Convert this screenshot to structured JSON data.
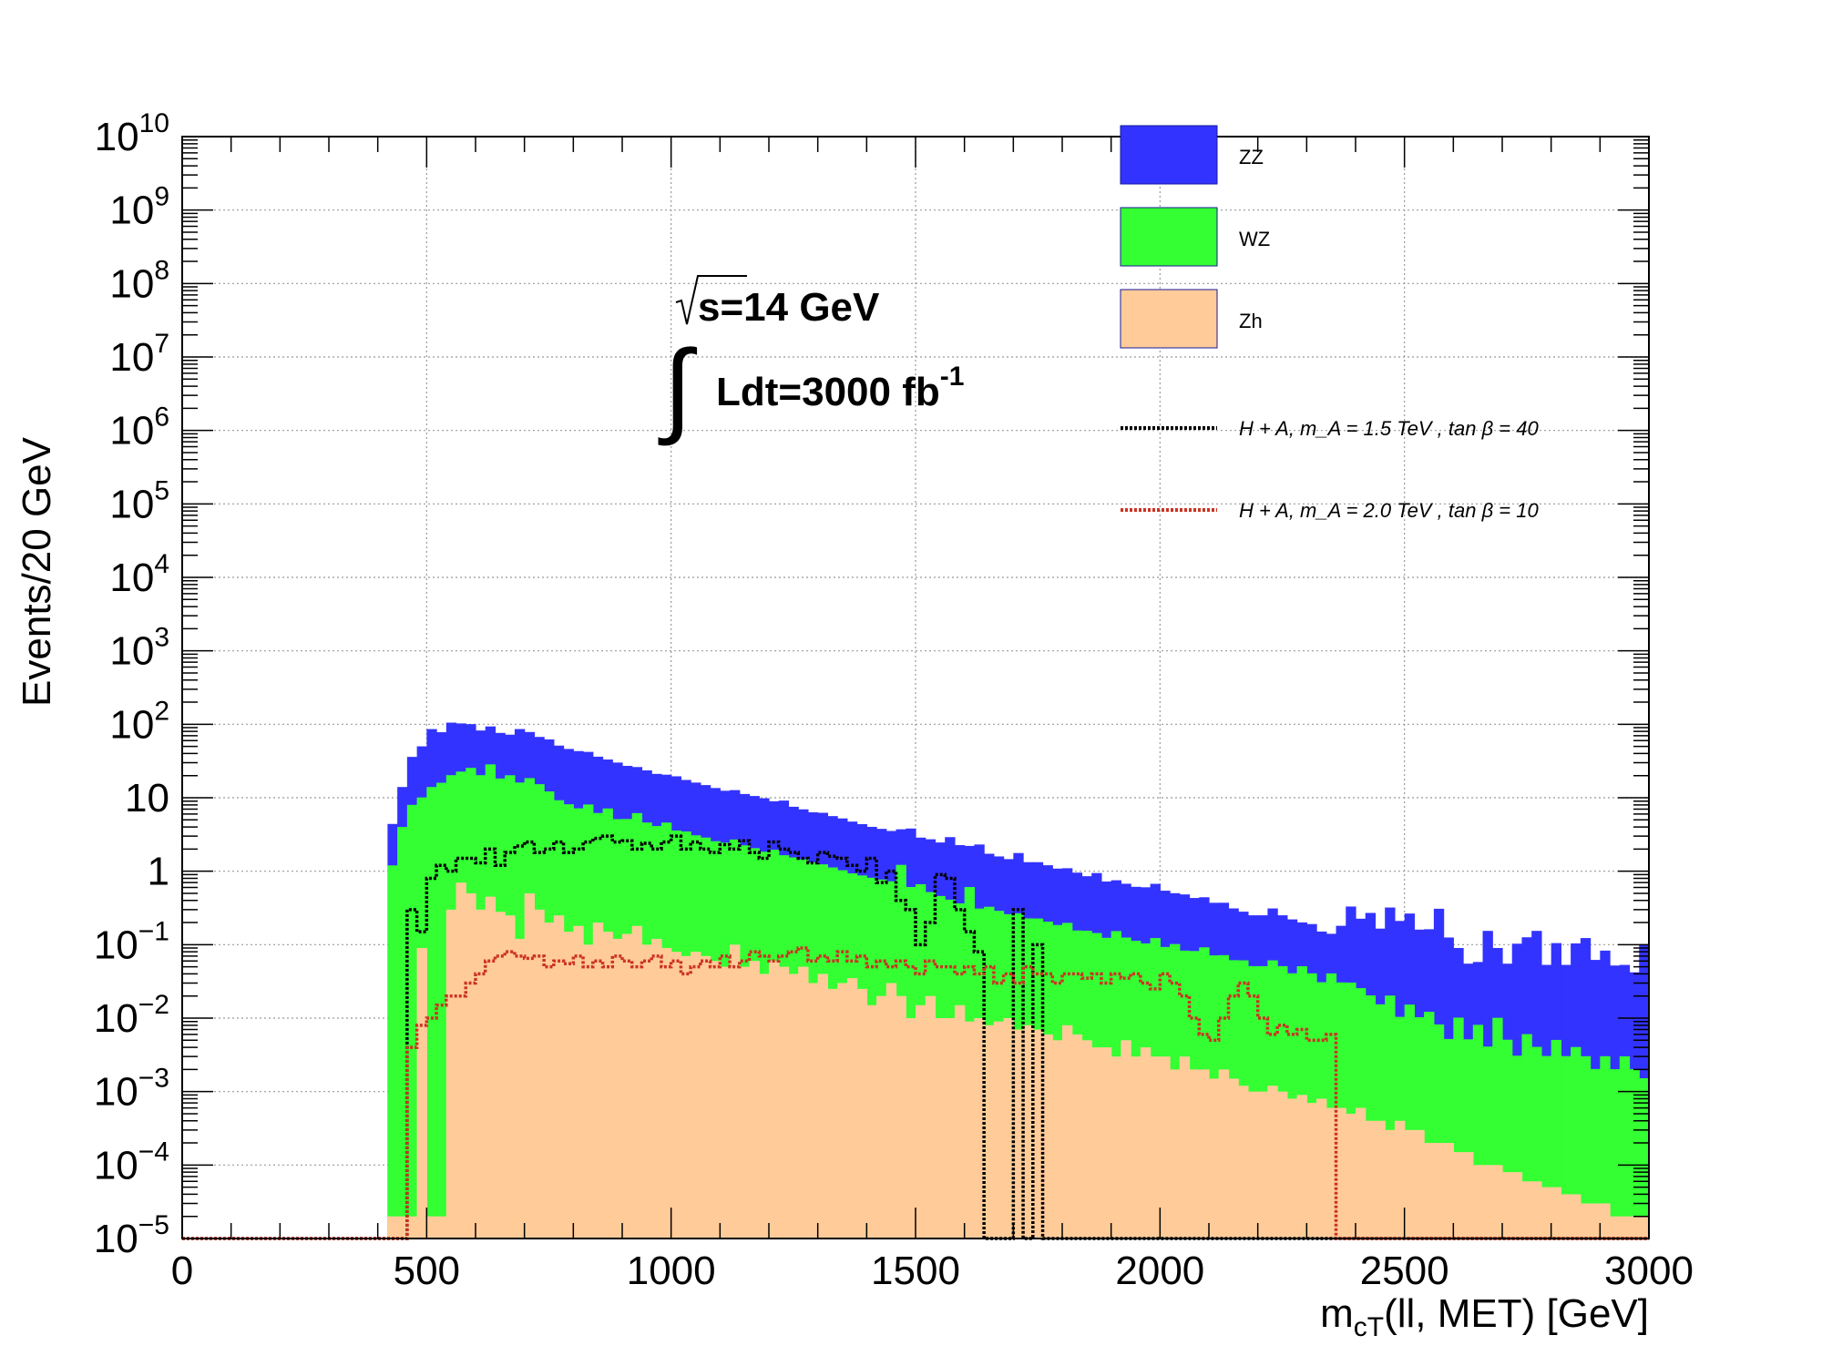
{
  "chart_data": {
    "type": "bar",
    "stacked": true,
    "xlabel": "m",
    "xlabel_sub": "cT",
    "xlabel_rest": "(ll, MET) [GeV]",
    "ylabel": "Events/20 GeV",
    "xlim": [
      0,
      3000
    ],
    "ylim": [
      1e-05,
      10000000000.0
    ],
    "yscale": "log",
    "grid": true,
    "bin_width": 20,
    "x_ticks": [
      "0",
      "500",
      "1000",
      "1500",
      "2000",
      "2500",
      "3000"
    ],
    "y_ticks": [
      {
        "base": "10",
        "exp": "10"
      },
      {
        "base": "10",
        "exp": "9"
      },
      {
        "base": "10",
        "exp": "8"
      },
      {
        "base": "10",
        "exp": "7"
      },
      {
        "base": "10",
        "exp": "6"
      },
      {
        "base": "10",
        "exp": "5"
      },
      {
        "base": "10",
        "exp": "4"
      },
      {
        "base": "10",
        "exp": "3"
      },
      {
        "base": "10",
        "exp": "2"
      },
      {
        "base": "10",
        "exp": ""
      },
      {
        "base": "1",
        "exp": ""
      },
      {
        "base": "10",
        "exp": "−1"
      },
      {
        "base": "10",
        "exp": "−2"
      },
      {
        "base": "10",
        "exp": "−3"
      },
      {
        "base": "10",
        "exp": "−4"
      },
      {
        "base": "10",
        "exp": "−5"
      }
    ],
    "annotations": {
      "sqrt_s": "s=14 GeV",
      "lumi": "Ldt=3000 fb",
      "lumi_exp": "-1"
    },
    "legend_position": "top-right",
    "series": [
      {
        "name": "ZZ",
        "kind": "stack",
        "color": "#3333ff",
        "x_start": 420,
        "values": [
          3.2,
          10,
          28,
          40,
          72,
          62,
          85,
          80,
          75,
          62,
          65,
          58,
          52,
          70,
          60,
          52,
          50,
          42,
          38,
          36,
          34,
          30,
          26,
          25,
          22,
          20,
          19,
          17,
          16,
          16,
          14,
          13,
          12,
          11,
          10,
          10,
          9,
          8.5,
          8,
          7,
          7.5,
          6,
          5.5,
          5,
          5,
          4.5,
          4.2,
          3.8,
          3.5,
          3.2,
          3,
          2.8,
          2.5,
          3.2,
          2.2,
          2.2,
          2,
          2.5,
          1.9,
          1.6,
          2.0,
          1.4,
          1.3,
          1.2,
          1.5,
          1.1,
          1.1,
          1.0,
          0.9,
          0.9,
          0.8,
          0.7,
          0.8,
          0.6,
          0.6,
          0.55,
          0.5,
          0.5,
          0.55,
          0.45,
          0.4,
          0.4,
          0.35,
          0.35,
          0.3,
          0.3,
          0.25,
          0.22,
          0.2,
          0.2,
          0.25,
          0.2,
          0.18,
          0.15,
          0.15,
          0.12,
          0.1,
          0.15,
          0.3,
          0.2,
          0.25,
          0.15,
          0.3,
          0.2,
          0.25,
          0.15,
          0.15,
          0.3,
          0.12,
          0.08,
          0.05,
          0.05,
          0.15,
          0.08,
          0.05,
          0.1,
          0.12,
          0.15,
          0.05,
          0.1,
          0.05,
          0.1,
          0.12,
          0.06,
          0.08,
          0.05,
          0.05,
          0.04,
          0.1,
          0.05,
          0.04,
          0.07,
          0.05,
          0.04,
          0.06,
          0.07,
          0.05,
          0.03,
          0.03,
          0.06,
          0.04,
          0.05,
          0.05,
          0.03,
          0.06,
          0.03,
          0.05,
          0.05,
          0.06,
          0.03,
          0.05,
          0.03,
          0.06,
          0.03,
          0.08,
          0.04,
          0.05,
          0.03,
          0.03,
          0.06,
          0.04,
          0.04,
          0.06,
          0.05,
          0.04,
          0.05,
          0.03,
          0.06,
          0.05,
          0.03,
          0.06
        ]
      },
      {
        "name": "WZ",
        "kind": "stack",
        "color": "#33ff33",
        "x_start": 420,
        "values": [
          1.2,
          4,
          8,
          10,
          14,
          16,
          20,
          22,
          25,
          20,
          28,
          18,
          20,
          16,
          18,
          15,
          12,
          9,
          8,
          7,
          8,
          6,
          7,
          5,
          5,
          6,
          4.5,
          4,
          4.5,
          3.5,
          3.4,
          3,
          2.8,
          2.5,
          2.4,
          2.6,
          2.2,
          2.0,
          1.8,
          1.9,
          1.6,
          1.5,
          1.4,
          1.3,
          1.2,
          1.1,
          1.0,
          0.9,
          0.85,
          0.8,
          0.75,
          0.7,
          1.2,
          0.6,
          0.65,
          0.5,
          0.45,
          0.4,
          0.35,
          0.6,
          0.3,
          0.32,
          0.28,
          0.25,
          0.26,
          0.22,
          0.22,
          0.2,
          0.18,
          0.19,
          0.15,
          0.15,
          0.14,
          0.12,
          0.15,
          0.12,
          0.11,
          0.1,
          0.12,
          0.09,
          0.1,
          0.08,
          0.08,
          0.09,
          0.07,
          0.07,
          0.06,
          0.06,
          0.05,
          0.05,
          0.06,
          0.05,
          0.04,
          0.05,
          0.04,
          0.03,
          0.04,
          0.03,
          0.03,
          0.025,
          0.02,
          0.015,
          0.02,
          0.01,
          0.015,
          0.01,
          0.012,
          0.008,
          0.005,
          0.01,
          0.005,
          0.008,
          0.004,
          0.01,
          0.005,
          0.003,
          0.006,
          0.004,
          0.003,
          0.005,
          0.003,
          0.004,
          0.003,
          0.002,
          0.003,
          0.002,
          0.003,
          0.002,
          0.0015,
          0.002,
          0.001,
          0.0015,
          0.001,
          0.0012,
          0.0008,
          0.001,
          0.0007,
          0.0008,
          0.0006,
          0.0007,
          0.0005,
          0.0006,
          0.0004,
          0.0005,
          0.0003,
          0.0004,
          0.0003,
          0.0002,
          0.0003,
          0.0002,
          0.0002,
          0.0001,
          0.0002,
          0.0001,
          0.0001,
          8e-05,
          0.0001,
          6e-05,
          8e-05,
          5e-05,
          6e-05,
          4e-05,
          5e-05,
          3e-05,
          4e-05,
          3e-05,
          2e-05,
          3e-05
        ]
      },
      {
        "name": "Zh",
        "kind": "stack",
        "color": "#ffcc99",
        "x_start": 420,
        "values": [
          2e-05,
          2e-05,
          2e-05,
          0.09,
          2e-05,
          2e-05,
          0.3,
          0.7,
          0.5,
          0.3,
          0.45,
          0.28,
          0.25,
          0.12,
          0.5,
          0.3,
          0.2,
          0.25,
          0.15,
          0.18,
          0.1,
          0.2,
          0.15,
          0.12,
          0.14,
          0.18,
          0.1,
          0.12,
          0.09,
          0.08,
          0.07,
          0.08,
          0.07,
          0.06,
          0.05,
          0.1,
          0.05,
          0.06,
          0.04,
          0.06,
          0.05,
          0.04,
          0.05,
          0.03,
          0.04,
          0.025,
          0.03,
          0.035,
          0.025,
          0.015,
          0.02,
          0.03,
          0.02,
          0.01,
          0.015,
          0.02,
          0.01,
          0.01,
          0.015,
          0.009,
          0.01,
          0.008,
          0.009,
          0.01,
          0.007,
          0.008,
          0.007,
          0.006,
          0.005,
          0.008,
          0.006,
          0.005,
          0.004,
          0.004,
          0.003,
          0.005,
          0.003,
          0.004,
          0.003,
          0.003,
          0.002,
          0.003,
          0.002,
          0.002,
          0.0015,
          0.002,
          0.0015,
          0.0012,
          0.001,
          0.001,
          0.0012,
          0.001,
          0.0008,
          0.0009,
          0.0007,
          0.0008,
          0.0006,
          0.0006,
          0.0005,
          0.0006,
          0.0004,
          0.0004,
          0.0003,
          0.0004,
          0.0003,
          0.0003,
          0.0002,
          0.0002,
          0.0002,
          0.00015,
          0.00015,
          0.0001,
          0.0001,
          0.0001,
          8e-05,
          8e-05,
          6e-05,
          6e-05,
          5e-05,
          5e-05,
          4e-05,
          4e-05,
          3e-05,
          3e-05,
          3e-05,
          2e-05,
          2e-05,
          2e-05,
          2e-05,
          2e-05,
          2e-05,
          2e-05,
          2e-05,
          2e-05,
          2e-05,
          2e-05,
          2e-05,
          2e-05,
          2e-05,
          2e-05,
          2e-05,
          2e-05,
          2e-05,
          2e-05,
          2e-05,
          2e-05,
          2e-05,
          2e-05,
          2e-05,
          2e-05,
          2e-05,
          2e-05,
          2e-05,
          2e-05,
          2e-05,
          2e-05,
          2e-05,
          2e-05,
          2e-05,
          2e-05,
          2e-05,
          2e-05,
          2e-05,
          2e-05,
          2e-05,
          2e-05,
          2e-05,
          2e-05,
          2e-05,
          2e-05,
          2e-05,
          2e-05
        ]
      },
      {
        "name": "H + A,   m_A = 1.5   TeV   ,   tan β = 40",
        "kind": "overlay",
        "color": "#000000",
        "x_start": 420,
        "values": [
          1e-05,
          1e-05,
          0.3,
          0.15,
          0.8,
          1.2,
          1.0,
          1.5,
          1.5,
          1.3,
          2.0,
          1.2,
          1.8,
          2.2,
          2.5,
          1.8,
          2.0,
          2.5,
          1.8,
          2.0,
          2.5,
          2.8,
          3.0,
          2.5,
          2.6,
          2.0,
          2.4,
          2.0,
          2.5,
          3.0,
          2.0,
          2.5,
          2.0,
          1.8,
          2.3,
          2.0,
          2.6,
          1.8,
          1.5,
          2.5,
          2.0,
          1.8,
          1.5,
          1.3,
          1.8,
          1.6,
          1.5,
          1.2,
          1.0,
          1.5,
          0.7,
          1.0,
          0.4,
          0.3,
          0.1,
          0.2,
          0.9,
          0.8,
          0.3,
          0.15,
          0.08,
          1e-05,
          1e-05,
          1e-05,
          0.3,
          1e-05,
          0.1,
          1e-05,
          1e-05,
          1e-05,
          1e-05,
          1e-05,
          1e-05,
          1e-05,
          1e-05,
          1e-05,
          1e-05,
          1e-05,
          1e-05,
          1e-05,
          1e-05,
          1e-05,
          1e-05,
          1e-05,
          1e-05,
          1e-05,
          1e-05,
          1e-05,
          1e-05,
          1e-05,
          1e-05,
          1e-05,
          1e-05,
          1e-05,
          1e-05,
          1e-05,
          1e-05,
          1e-05,
          1e-05,
          1e-05,
          1e-05,
          1e-05,
          1e-05,
          1e-05,
          1e-05,
          1e-05,
          1e-05,
          1e-05,
          1e-05,
          1e-05,
          1e-05,
          1e-05,
          1e-05,
          1e-05,
          1e-05,
          1e-05,
          1e-05,
          1e-05,
          1e-05,
          1e-05,
          1e-05,
          1e-05,
          1e-05,
          1e-05,
          1e-05,
          1e-05,
          1e-05,
          1e-05,
          1e-05,
          1e-05,
          1e-05,
          1e-05,
          1e-05,
          1e-05,
          1e-05,
          1e-05,
          1e-05,
          1e-05,
          1e-05,
          1e-05,
          1e-05,
          1e-05,
          1e-05,
          1e-05,
          1e-05,
          1e-05,
          1e-05,
          1e-05,
          1e-05,
          1e-05,
          1e-05,
          1e-05,
          1e-05,
          1e-05,
          1e-05,
          1e-05,
          1e-05,
          1e-05,
          1e-05,
          1e-05,
          1e-05,
          1e-05,
          1e-05,
          1e-05,
          1e-05,
          1e-05,
          1e-05,
          1e-05,
          1e-05,
          1e-05,
          1e-05,
          1e-05,
          1e-05,
          1e-05
        ]
      },
      {
        "name": "H + A,   m_A = 2.0   TeV   ,   tan β = 10",
        "kind": "overlay",
        "color": "#cc3322",
        "x_start": 420,
        "values": [
          1e-05,
          1e-05,
          0.004,
          0.008,
          0.01,
          0.015,
          0.02,
          0.02,
          0.03,
          0.04,
          0.06,
          0.07,
          0.08,
          0.07,
          0.065,
          0.07,
          0.05,
          0.06,
          0.055,
          0.07,
          0.05,
          0.06,
          0.05,
          0.07,
          0.06,
          0.05,
          0.06,
          0.07,
          0.05,
          0.06,
          0.04,
          0.05,
          0.06,
          0.05,
          0.07,
          0.05,
          0.06,
          0.08,
          0.07,
          0.06,
          0.07,
          0.08,
          0.09,
          0.06,
          0.07,
          0.06,
          0.08,
          0.06,
          0.07,
          0.05,
          0.06,
          0.05,
          0.06,
          0.05,
          0.04,
          0.06,
          0.05,
          0.05,
          0.04,
          0.05,
          0.04,
          0.05,
          0.03,
          0.04,
          0.03,
          0.05,
          0.04,
          0.04,
          0.03,
          0.04,
          0.04,
          0.035,
          0.04,
          0.03,
          0.04,
          0.035,
          0.04,
          0.03,
          0.025,
          0.04,
          0.03,
          0.02,
          0.01,
          0.006,
          0.005,
          0.01,
          0.02,
          0.03,
          0.02,
          0.01,
          0.006,
          0.008,
          0.006,
          0.007,
          0.005,
          0.005,
          0.006,
          1e-05,
          1e-05,
          1e-05,
          1e-05,
          1e-05,
          1e-05,
          1e-05,
          1e-05,
          1e-05,
          1e-05,
          1e-05,
          1e-05,
          1e-05,
          1e-05,
          1e-05,
          1e-05,
          1e-05,
          1e-05,
          1e-05,
          1e-05,
          1e-05,
          1e-05,
          1e-05,
          1e-05,
          1e-05,
          1e-05,
          1e-05,
          1e-05,
          1e-05,
          1e-05,
          1e-05,
          1e-05,
          1e-05,
          1e-05,
          1e-05,
          1e-05,
          1e-05,
          1e-05,
          1e-05,
          1e-05,
          1e-05,
          1e-05,
          1e-05,
          1e-05,
          1e-05,
          1e-05,
          1e-05,
          1e-05,
          1e-05,
          1e-05,
          1e-05,
          1e-05,
          1e-05,
          1e-05,
          1e-05,
          1e-05,
          1e-05,
          1e-05,
          1e-05,
          1e-05,
          1e-05,
          1e-05,
          1e-05,
          1e-05,
          1e-05,
          1e-05,
          1e-05,
          1e-05,
          1e-05,
          1e-05,
          1e-05,
          1e-05,
          1e-05,
          1e-05,
          1e-05,
          1e-05,
          1e-05
        ]
      }
    ]
  }
}
